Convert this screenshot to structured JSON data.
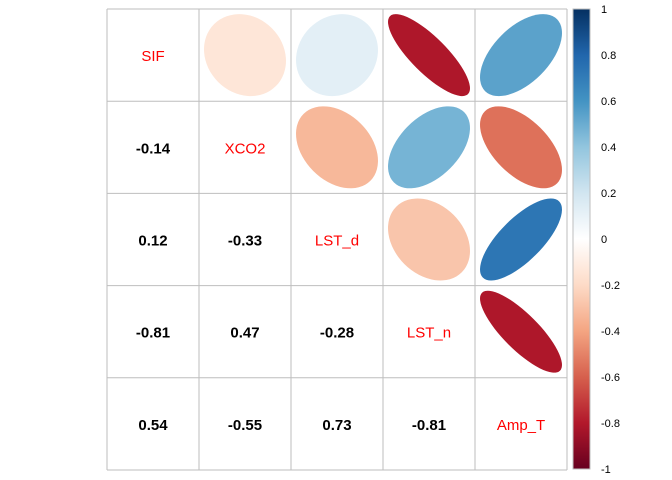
{
  "chart_data": {
    "type": "heatmap",
    "variables": [
      "SIF",
      "XCO2",
      "LST_d",
      "LST_n",
      "Amp_T"
    ],
    "matrix": [
      [
        1,
        -0.14,
        0.12,
        -0.81,
        0.54
      ],
      [
        -0.14,
        1,
        -0.33,
        0.47,
        -0.55
      ],
      [
        0.12,
        -0.33,
        1,
        -0.28,
        0.73
      ],
      [
        -0.81,
        0.47,
        -0.28,
        1,
        -0.81
      ],
      [
        0.54,
        -0.55,
        0.73,
        -0.81,
        1
      ]
    ],
    "lower_values": [
      {
        "row": 1,
        "col": 0,
        "label": "-0.14"
      },
      {
        "row": 2,
        "col": 0,
        "label": "0.12"
      },
      {
        "row": 2,
        "col": 1,
        "label": "-0.33"
      },
      {
        "row": 3,
        "col": 0,
        "label": "-0.81"
      },
      {
        "row": 3,
        "col": 1,
        "label": "0.47"
      },
      {
        "row": 3,
        "col": 2,
        "label": "-0.28"
      },
      {
        "row": 4,
        "col": 0,
        "label": "0.54"
      },
      {
        "row": 4,
        "col": 1,
        "label": "-0.55"
      },
      {
        "row": 4,
        "col": 2,
        "label": "0.73"
      },
      {
        "row": 4,
        "col": 3,
        "label": "-0.81"
      }
    ],
    "upper": "ellipse",
    "lower": "number",
    "diagonal": "variable names",
    "colorbar": {
      "range": [
        -1,
        1
      ],
      "ticks": [
        "1",
        "0.8",
        "0.6",
        "0.4",
        "0.2",
        "0",
        "-0.2",
        "-0.4",
        "-0.6",
        "-0.8",
        "-1"
      ],
      "colors": [
        "#67001F",
        "#B2182B",
        "#D6604D",
        "#F4A582",
        "#FDDBC7",
        "#FFFFFF",
        "#D1E5F0",
        "#92C5DE",
        "#4393C3",
        "#2166AC",
        "#053061"
      ]
    },
    "label_color": "#FF0000",
    "grid_color": "#BEBEBE"
  }
}
